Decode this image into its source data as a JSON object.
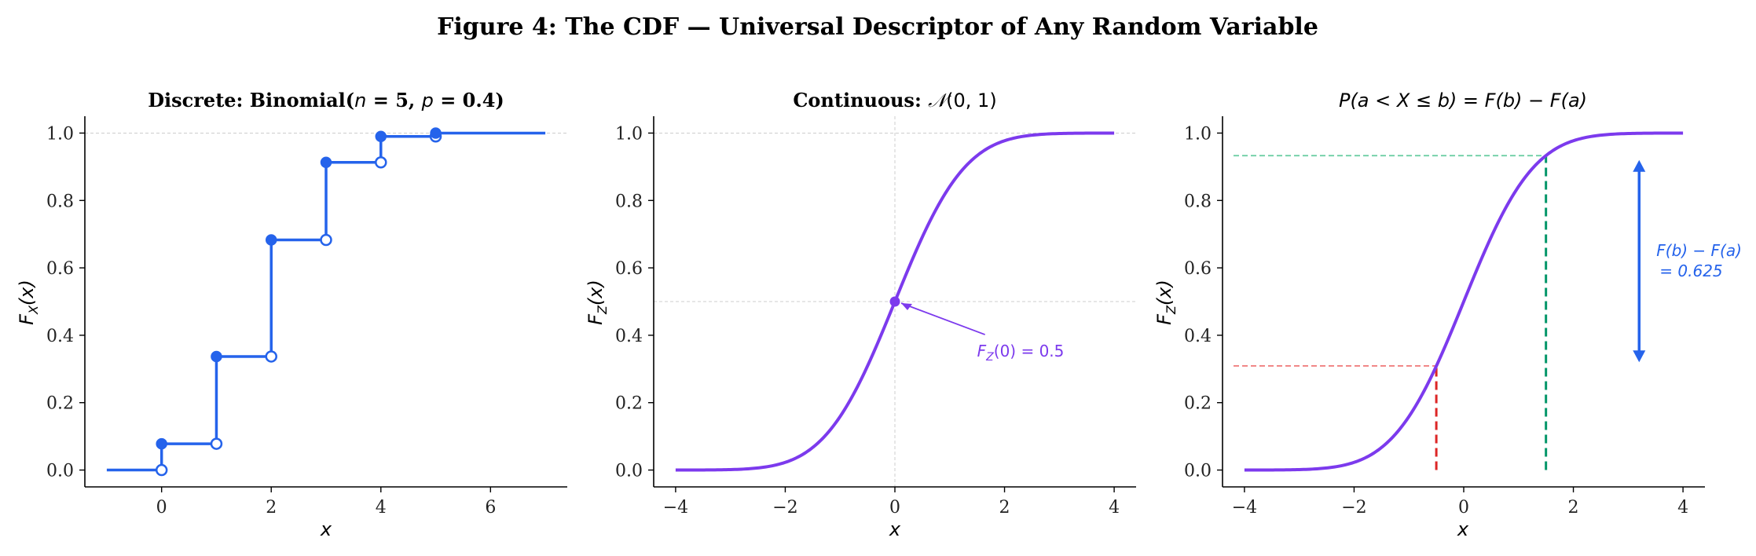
{
  "figure_title": "Figure 4: The CDF — Universal Descriptor of Any Random Variable",
  "colors": {
    "blue": "#2563eb",
    "purple": "#7c3aed",
    "red": "#dc2626",
    "green": "#059669",
    "red_light": "#f08080",
    "green_light": "#6fcfa5",
    "grid": "#cccccc"
  },
  "chart_data": [
    {
      "type": "line",
      "subtype": "step",
      "title": "Discrete: Binomial(n = 5, p = 0.4)",
      "xlabel": "x",
      "ylabel": "F_X(x)",
      "xlim": [
        -1.4,
        7.4
      ],
      "ylim": [
        -0.05,
        1.05
      ],
      "xticks": [
        0,
        2,
        4,
        6
      ],
      "yticks": [
        0.0,
        0.2,
        0.4,
        0.6,
        0.8,
        1.0
      ],
      "x_range": [
        -1,
        7
      ],
      "jump_points": [
        0,
        1,
        2,
        3,
        4,
        5
      ],
      "cdf_values": [
        0.078,
        0.337,
        0.683,
        0.913,
        0.99,
        1.0
      ],
      "before_first": 0.0,
      "markers": "filled dot at new value, open dot at previous value",
      "grid": "horizontal line at 1.0"
    },
    {
      "type": "line",
      "title": "Continuous: N(0, 1)",
      "xlabel": "x",
      "ylabel": "F_Z(x)",
      "xlim": [
        -4.4,
        4.4
      ],
      "ylim": [
        -0.05,
        1.05
      ],
      "xticks": [
        -4,
        -2,
        0,
        2,
        4
      ],
      "yticks": [
        0.0,
        0.2,
        0.4,
        0.6,
        0.8,
        1.0
      ],
      "x_range": [
        -4,
        4
      ],
      "function": "standard normal CDF",
      "highlight_point": {
        "x": 0,
        "y": 0.5
      },
      "annotation": "F_Z(0) = 0.5",
      "grid": "lines at x = 0, y = 0.5 and y = 1.0"
    },
    {
      "type": "line",
      "title": "P(a < X ≤ b) = F(b) − F(a)",
      "xlabel": "x",
      "ylabel": "F_Z(x)",
      "xlim": [
        -4.4,
        4.4
      ],
      "ylim": [
        -0.05,
        1.05
      ],
      "xticks": [
        -4,
        -2,
        0,
        2,
        4
      ],
      "yticks": [
        0.0,
        0.2,
        0.4,
        0.6,
        0.8,
        1.0
      ],
      "x_range": [
        -4,
        4
      ],
      "function": "standard normal CDF",
      "a": -0.5,
      "b": 1.5,
      "F_a": 0.309,
      "F_b": 0.933,
      "difference_label_line1": "F(b) − F(a)",
      "difference_label_line2": "= 0.625"
    }
  ]
}
